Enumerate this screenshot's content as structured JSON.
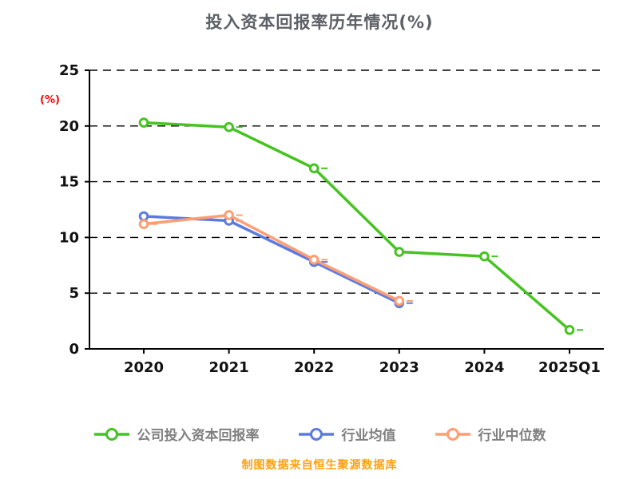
{
  "footer": "制图数据来自恒生聚源数据库",
  "colors": {
    "title": "#5c6066",
    "axis": "#000000",
    "tick_label": "#111111",
    "y_unit": "#ff0000",
    "legend_text": "#808080",
    "footer": "#ffa012",
    "background": "#ffffff"
  },
  "chart_data": {
    "type": "line",
    "title": "投入资本回报率历年情况(%)",
    "xlabel": "",
    "ylabel": "(%)",
    "categories": [
      "2020",
      "2021",
      "2022",
      "2023",
      "2024",
      "2025Q1"
    ],
    "series": [
      {
        "name": "公司投入资本回报率",
        "color": "#45c421",
        "values": [
          20.3,
          19.9,
          16.2,
          8.7,
          8.3,
          1.7
        ]
      },
      {
        "name": "行业均值",
        "color": "#5b7be0",
        "values": [
          11.9,
          11.5,
          7.8,
          4.1,
          null,
          null
        ]
      },
      {
        "name": "行业中位数",
        "color": "#ff9d73",
        "values": [
          11.2,
          12.0,
          8.0,
          4.3,
          null,
          null
        ]
      }
    ],
    "ylim": [
      0,
      25
    ],
    "y_ticks": [
      0,
      5,
      10,
      15,
      20,
      25
    ],
    "grid": "horizontal dashed black lines",
    "legend_position": "bottom",
    "marker": "open circle"
  }
}
